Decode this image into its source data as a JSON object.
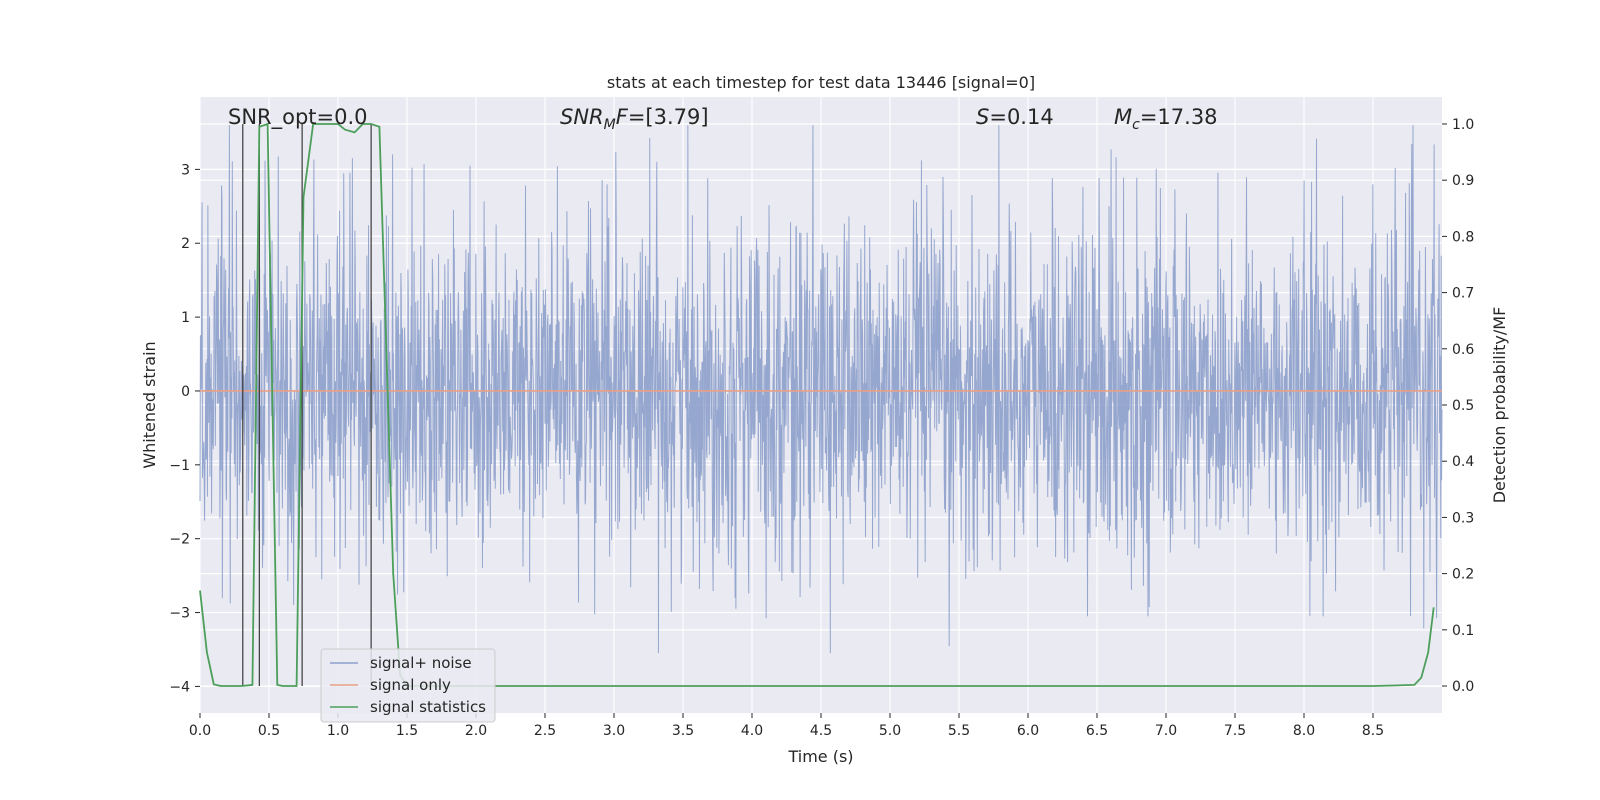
{
  "chart_data": {
    "type": "line",
    "title": "stats at each timestep for test data 13446 [signal=0]",
    "xlabel": "Time (s)",
    "ylabel": "Whitened strain",
    "y2label": "Detection probability/MF",
    "xlim": [
      0,
      9.0
    ],
    "ylim": [
      -4.36,
      3.98
    ],
    "y2lim": [
      -0.048,
      1.048
    ],
    "x_ticks": [
      0.0,
      0.5,
      1.0,
      1.5,
      2.0,
      2.5,
      3.0,
      3.5,
      4.0,
      4.5,
      5.0,
      5.5,
      6.0,
      6.5,
      7.0,
      7.5,
      8.0,
      8.5
    ],
    "x_tick_labels": [
      "0.0",
      "0.5",
      "1.0",
      "1.5",
      "2.0",
      "2.5",
      "3.0",
      "3.5",
      "4.0",
      "4.5",
      "5.0",
      "5.5",
      "6.0",
      "6.5",
      "7.0",
      "7.5",
      "8.0",
      "8.5"
    ],
    "y_ticks": [
      -4,
      -3,
      -2,
      -1,
      0,
      1,
      2,
      3
    ],
    "y_tick_labels": [
      "−4",
      "−3",
      "−2",
      "−1",
      "0",
      "1",
      "2",
      "3"
    ],
    "y2_ticks": [
      0.0,
      0.1,
      0.2,
      0.3,
      0.4,
      0.5,
      0.6,
      0.7,
      0.8,
      0.9,
      1.0
    ],
    "y2_tick_labels": [
      "0.0",
      "0.1",
      "0.2",
      "0.3",
      "0.4",
      "0.5",
      "0.6",
      "0.7",
      "0.8",
      "0.9",
      "1.0"
    ],
    "grid": true,
    "legend_position": "lower-left",
    "series": [
      {
        "name": "signal+ noise",
        "color": "#8da0cb",
        "axis": "left",
        "note_values": "dense noise time series, amplitude roughly between -3.5 and 3.6"
      },
      {
        "name": "signal only",
        "color": "#e8a087",
        "axis": "left",
        "x": [
          0.0,
          9.0
        ],
        "y": [
          0.0,
          0.0
        ]
      },
      {
        "name": "signal statistics",
        "color": "#4c9f5a",
        "axis": "right",
        "x": [
          0.0,
          0.05,
          0.1,
          0.15,
          0.2,
          0.25,
          0.3,
          0.38,
          0.43,
          0.49,
          0.56,
          0.6,
          0.65,
          0.7,
          0.75,
          0.82,
          0.88,
          0.94,
          1.0,
          1.05,
          1.12,
          1.18,
          1.24,
          1.3,
          1.35,
          1.4,
          1.45,
          1.5,
          2.0,
          3.0,
          4.0,
          5.0,
          6.0,
          7.0,
          8.0,
          8.5,
          8.8,
          8.85,
          8.9,
          8.94
        ],
        "y": [
          0.17,
          0.06,
          0.003,
          0.0,
          0.0,
          0.0,
          0.0,
          0.002,
          0.995,
          1.0,
          0.002,
          0.0,
          0.0,
          0.0,
          0.87,
          1.0,
          1.0,
          1.0,
          1.0,
          0.99,
          0.985,
          1.0,
          1.0,
          0.995,
          0.6,
          0.2,
          0.02,
          0.0,
          0.0,
          0.0,
          0.0,
          0.0,
          0.0,
          0.0,
          0.0,
          0.0,
          0.002,
          0.015,
          0.06,
          0.14
        ]
      }
    ],
    "vertical_lines_x": [
      0.31,
      0.43,
      0.74,
      1.24
    ],
    "vertical_lines_color": "#3a3a3a",
    "annotations": [
      {
        "text": "SNR_opt=0.0"
      },
      {
        "text": "SNR_MF=[3.79]"
      },
      {
        "text": "S=0.14"
      },
      {
        "text": "M_c=17.38"
      }
    ],
    "legend": [
      {
        "label": "signal+ noise",
        "color": "#8da0cb"
      },
      {
        "label": "signal only",
        "color": "#e8a087"
      },
      {
        "label": "signal statistics",
        "color": "#4c9f5a"
      }
    ]
  }
}
